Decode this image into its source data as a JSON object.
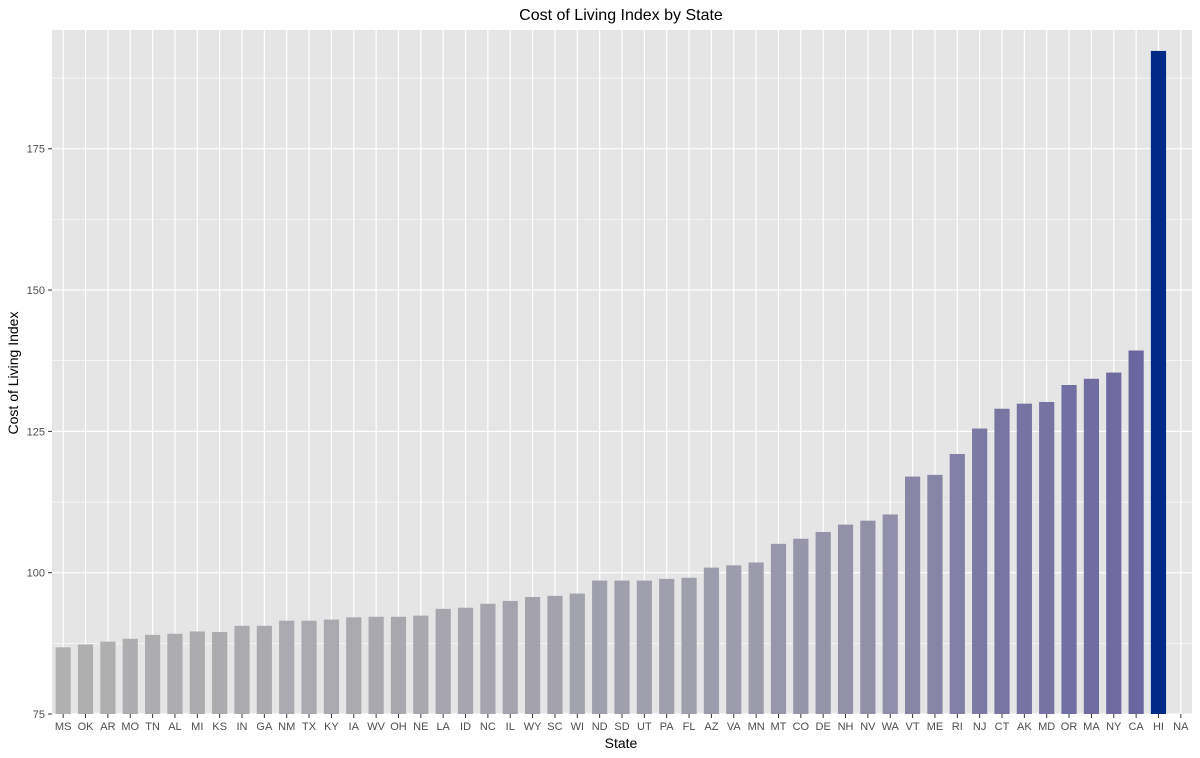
{
  "chart_data": {
    "type": "bar",
    "title": "Cost of Living Index by State",
    "xlabel": "State",
    "ylabel": "Cost of Living Index",
    "ylim": [
      75,
      196
    ],
    "yticks": [
      75,
      100,
      125,
      150,
      175
    ],
    "grid": true,
    "legend": "none",
    "colors": {
      "panel": "#e5e5e5",
      "grid": "#ffffff",
      "low": "#b0b0b0",
      "high": "#6a66a0",
      "max": "#002a86"
    },
    "categories": [
      "MS",
      "OK",
      "AR",
      "MO",
      "TN",
      "AL",
      "MI",
      "KS",
      "IN",
      "GA",
      "NM",
      "TX",
      "KY",
      "IA",
      "WV",
      "OH",
      "NE",
      "LA",
      "ID",
      "NC",
      "IL",
      "WY",
      "SC",
      "WI",
      "ND",
      "SD",
      "UT",
      "PA",
      "FL",
      "AZ",
      "VA",
      "MN",
      "MT",
      "CO",
      "DE",
      "NH",
      "NV",
      "WA",
      "VT",
      "ME",
      "RI",
      "NJ",
      "CT",
      "AK",
      "MD",
      "OR",
      "MA",
      "NY",
      "CA",
      "HI",
      "NA"
    ],
    "values": [
      86.8,
      87.3,
      87.8,
      88.3,
      89.0,
      89.2,
      89.6,
      89.5,
      90.6,
      90.6,
      91.5,
      91.5,
      91.7,
      92.1,
      92.2,
      92.2,
      92.4,
      93.6,
      93.8,
      94.5,
      95.0,
      95.7,
      95.9,
      96.3,
      98.6,
      98.6,
      98.6,
      98.9,
      99.1,
      100.9,
      101.3,
      101.8,
      105.1,
      106.0,
      107.2,
      108.5,
      109.2,
      110.3,
      117.0,
      117.3,
      121.0,
      125.5,
      129.0,
      129.9,
      130.2,
      133.2,
      134.3,
      135.4,
      139.3,
      192.3,
      null
    ]
  }
}
